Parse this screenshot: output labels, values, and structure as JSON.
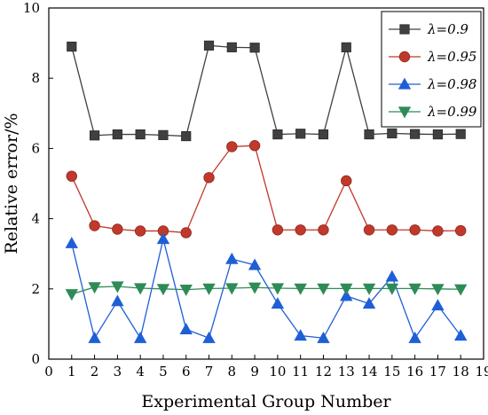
{
  "chart_data": {
    "type": "line",
    "xlabel": "Experimental Group Number",
    "ylabel": "Relative error/%",
    "xlim": [
      0,
      19
    ],
    "ylim": [
      0,
      10
    ],
    "x_ticks": [
      0,
      1,
      2,
      3,
      4,
      5,
      6,
      7,
      8,
      9,
      10,
      11,
      12,
      13,
      14,
      15,
      16,
      17,
      18,
      19
    ],
    "y_ticks": [
      0,
      2,
      4,
      6,
      8,
      10
    ],
    "grid": false,
    "legend_position": "top-right",
    "x": [
      1,
      2,
      3,
      4,
      5,
      6,
      7,
      8,
      9,
      10,
      11,
      12,
      13,
      14,
      15,
      16,
      17,
      18
    ],
    "series": [
      {
        "name": "λ=0.9",
        "color": "#404040",
        "marker": "square",
        "values": [
          8.9,
          6.37,
          6.4,
          6.4,
          6.38,
          6.35,
          8.93,
          8.88,
          8.87,
          6.4,
          6.42,
          6.4,
          8.88,
          6.4,
          6.43,
          6.41,
          6.4,
          6.41
        ]
      },
      {
        "name": "λ=0.95",
        "color": "#c0392b",
        "marker": "circle",
        "values": [
          5.21,
          3.8,
          3.7,
          3.65,
          3.65,
          3.6,
          5.17,
          6.05,
          6.08,
          3.68,
          3.68,
          3.68,
          5.08,
          3.68,
          3.68,
          3.68,
          3.65,
          3.66
        ]
      },
      {
        "name": "λ=0.98",
        "color": "#1f5fd6",
        "marker": "triangle-up",
        "values": [
          3.3,
          0.6,
          1.65,
          0.6,
          3.42,
          0.85,
          0.6,
          2.85,
          2.68,
          1.58,
          0.67,
          0.6,
          1.8,
          1.58,
          2.35,
          0.6,
          1.53,
          0.67
        ]
      },
      {
        "name": "λ=0.99",
        "color": "#2e8b57",
        "marker": "triangle-down",
        "values": [
          1.85,
          2.05,
          2.07,
          2.02,
          2.0,
          1.98,
          2.01,
          2.02,
          2.04,
          2.02,
          2.01,
          2.01,
          2.01,
          2.01,
          2.01,
          2.01,
          2.0,
          1.99
        ]
      }
    ]
  }
}
